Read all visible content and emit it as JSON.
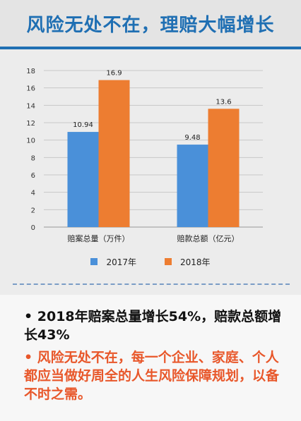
{
  "header": {
    "title": "风险无处不在，理赔大幅增长"
  },
  "chart_data": {
    "type": "bar",
    "categories": [
      "赔案总量（万件）",
      "赔款总额（亿元）"
    ],
    "series": [
      {
        "name": "2017年",
        "values": [
          10.94,
          9.48
        ],
        "color": "#4a90d9"
      },
      {
        "name": "2018年",
        "values": [
          16.9,
          13.6
        ],
        "color": "#ed7d31"
      }
    ],
    "data_labels": [
      [
        "10.94",
        "9.48"
      ],
      [
        "16.9",
        "13.6"
      ]
    ],
    "y_ticks": [
      "0",
      "2",
      "4",
      "6",
      "8",
      "10",
      "12",
      "14",
      "16",
      "18"
    ],
    "ylim": [
      0,
      18
    ],
    "grid": true,
    "legend_position": "bottom"
  },
  "legend": {
    "series1": "2017年",
    "series2": "2018年"
  },
  "bullets": {
    "line1": "• 2018年赔案总量增长54%，赔款总额增长43%",
    "line2": "• 风险无处不在，每一个企业、家庭、个人都应当做好周全的人生风险保障规划，以备不时之需。"
  }
}
